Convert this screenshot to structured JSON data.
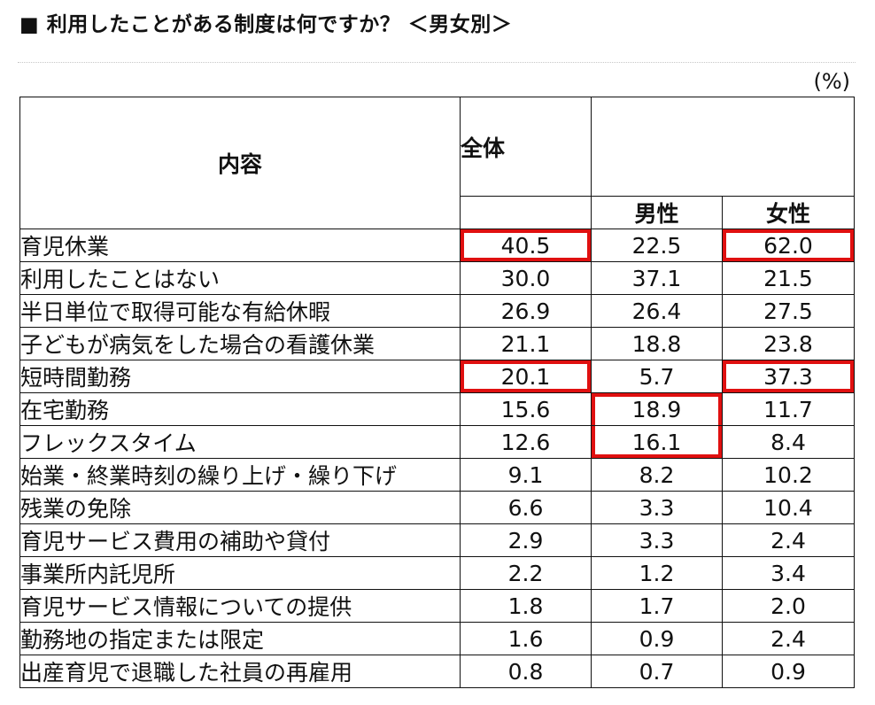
{
  "title": "■ 利用したことがある制度は何ですか？ ＜男女別＞",
  "unit": "(%)",
  "headers": {
    "item": "内容",
    "all": "全体",
    "male": "男性",
    "female": "女性"
  },
  "highlight_color": "#e01010",
  "chart_data": {
    "type": "table",
    "title": "■ 利用したことがある制度は何ですか？ ＜男女別＞",
    "unit": "(%)",
    "columns": [
      "内容",
      "全体",
      "男性",
      "女性"
    ],
    "rows": [
      {
        "label": "育児休業",
        "all": "40.5",
        "male": "22.5",
        "female": "62.0",
        "highlight": [
          "all",
          "female"
        ]
      },
      {
        "label": "利用したことはない",
        "all": "30.0",
        "male": "37.1",
        "female": "21.5",
        "highlight": []
      },
      {
        "label": "半日単位で取得可能な有給休暇",
        "all": "26.9",
        "male": "26.4",
        "female": "27.5",
        "highlight": []
      },
      {
        "label": "子どもが病気をした場合の看護休業",
        "all": "21.1",
        "male": "18.8",
        "female": "23.8",
        "highlight": []
      },
      {
        "label": "短時間勤務",
        "all": "20.1",
        "male": "5.7",
        "female": "37.3",
        "highlight": [
          "all",
          "female"
        ]
      },
      {
        "label": "在宅勤務",
        "all": "15.6",
        "male": "18.9",
        "female": "11.7",
        "highlight": [
          "male"
        ]
      },
      {
        "label": "フレックスタイム",
        "all": "12.6",
        "male": "16.1",
        "female": "8.4",
        "highlight": [
          "male"
        ]
      },
      {
        "label": "始業・終業時刻の繰り上げ・繰り下げ",
        "all": "9.1",
        "male": "8.2",
        "female": "10.2",
        "highlight": []
      },
      {
        "label": "残業の免除",
        "all": "6.6",
        "male": "3.3",
        "female": "10.4",
        "highlight": []
      },
      {
        "label": "育児サービス費用の補助や貸付",
        "all": "2.9",
        "male": "3.3",
        "female": "2.4",
        "highlight": []
      },
      {
        "label": "事業所内託児所",
        "all": "2.2",
        "male": "1.2",
        "female": "3.4",
        "highlight": []
      },
      {
        "label": "育児サービス情報についての提供",
        "all": "1.8",
        "male": "1.7",
        "female": "2.0",
        "highlight": []
      },
      {
        "label": "勤務地の指定または限定",
        "all": "1.6",
        "male": "0.9",
        "female": "2.4",
        "highlight": []
      },
      {
        "label": "出産育児で退職した社員の再雇用",
        "all": "0.8",
        "male": "0.7",
        "female": "0.9",
        "highlight": []
      }
    ]
  }
}
